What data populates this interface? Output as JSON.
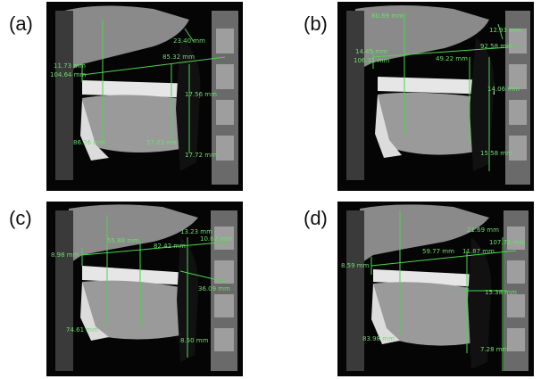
{
  "panels": [
    {
      "label": "(a)",
      "measurements": [
        "23.40 mm",
        "11.73 mm",
        "104.64 mm",
        "85.32 mm",
        "17.56 mm",
        "86.26 mm",
        "57.03 mm",
        "17.72 mm"
      ],
      "colors": {
        "measure_line": "#4fd34f",
        "background": "#000000"
      }
    },
    {
      "label": "(b)",
      "measurements": [
        "80.69 mm",
        "12.93 mm",
        "14.45 mm",
        "106.31 mm",
        "92.58 mm",
        "49.22 mm",
        "14.06 mm",
        "15.58 mm"
      ],
      "colors": {
        "measure_line": "#4fd34f",
        "background": "#000000"
      }
    },
    {
      "label": "(c)",
      "measurements": [
        "55.88 mm",
        "82.42 mm",
        "13.23 mm",
        "10.67 mm",
        "8.98 mm",
        "36.09 mm",
        "74.61 mm",
        "8.50 mm"
      ],
      "colors": {
        "measure_line": "#4fd34f",
        "background": "#000000"
      }
    },
    {
      "label": "(d)",
      "measurements": [
        "21.69 mm",
        "59.77 mm",
        "107.79 mm",
        "11.87 mm",
        "8.59 mm",
        "15.38 mm",
        "83.98 mm",
        "7.28 mm"
      ],
      "colors": {
        "measure_line": "#4fd34f",
        "background": "#000000"
      }
    }
  ]
}
